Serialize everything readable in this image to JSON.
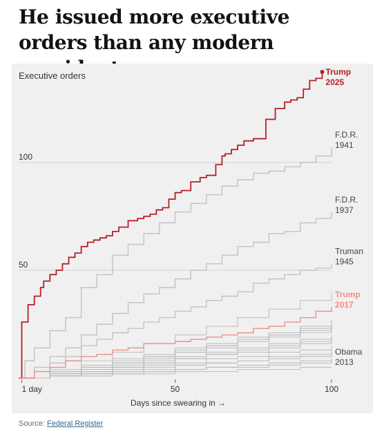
{
  "headline": "He issued more executive orders than any modern president …",
  "source": {
    "prefix": "Source:",
    "link": "Federal Register"
  },
  "chart_data": {
    "type": "line",
    "title": "Executive orders",
    "xlabel": "Days since swearing in →",
    "x_ticks": [
      {
        "value": 1,
        "label": "1 day"
      },
      {
        "value": 50,
        "label": "50"
      },
      {
        "value": 100,
        "label": "100"
      }
    ],
    "y_ticks": [
      {
        "value": 50,
        "label": "50"
      },
      {
        "value": 100,
        "label": "100"
      }
    ],
    "xlim": [
      0,
      100
    ],
    "ylim": [
      0,
      142
    ],
    "grid": "horizontal",
    "colors": {
      "trump2025": "#b52025",
      "trump2017": "#f08c8c",
      "highlight_gray": "#c2c2c2",
      "others": "#b8b8b8"
    },
    "series": [
      {
        "name": "Trump 2025",
        "labels": [
          "Trump",
          "2025"
        ],
        "style": "trump2025",
        "points": [
          [
            0,
            0
          ],
          [
            1,
            19
          ],
          [
            1,
            26
          ],
          [
            3,
            34
          ],
          [
            5,
            38
          ],
          [
            7,
            42
          ],
          [
            8,
            45
          ],
          [
            10,
            48
          ],
          [
            12,
            50
          ],
          [
            14,
            53
          ],
          [
            16,
            56
          ],
          [
            18,
            58
          ],
          [
            20,
            61
          ],
          [
            22,
            63
          ],
          [
            24,
            64
          ],
          [
            26,
            65
          ],
          [
            28,
            66
          ],
          [
            30,
            68
          ],
          [
            32,
            70
          ],
          [
            35,
            73
          ],
          [
            38,
            74
          ],
          [
            40,
            75
          ],
          [
            42,
            76
          ],
          [
            44,
            78
          ],
          [
            46,
            79
          ],
          [
            48,
            83
          ],
          [
            50,
            86
          ],
          [
            52,
            87
          ],
          [
            55,
            91
          ],
          [
            58,
            93
          ],
          [
            60,
            94
          ],
          [
            63,
            99
          ],
          [
            65,
            103
          ],
          [
            66,
            104
          ],
          [
            68,
            106
          ],
          [
            70,
            108
          ],
          [
            72,
            110
          ],
          [
            75,
            111
          ],
          [
            79,
            120
          ],
          [
            82,
            125
          ],
          [
            85,
            128
          ],
          [
            87,
            129
          ],
          [
            89,
            130
          ],
          [
            91,
            134
          ],
          [
            93,
            138
          ],
          [
            95,
            139
          ],
          [
            97,
            142
          ]
        ]
      },
      {
        "name": "F.D.R. 1941",
        "labels": [
          "F.D.R.",
          "1941"
        ],
        "style": "highlight",
        "points": [
          [
            0,
            0
          ],
          [
            2,
            8
          ],
          [
            5,
            14
          ],
          [
            10,
            22
          ],
          [
            15,
            28
          ],
          [
            20,
            42
          ],
          [
            25,
            48
          ],
          [
            30,
            57
          ],
          [
            35,
            62
          ],
          [
            40,
            67
          ],
          [
            45,
            72
          ],
          [
            50,
            77
          ],
          [
            55,
            81
          ],
          [
            60,
            85
          ],
          [
            65,
            89
          ],
          [
            70,
            92
          ],
          [
            75,
            95
          ],
          [
            80,
            96
          ],
          [
            85,
            98
          ],
          [
            90,
            100
          ],
          [
            95,
            103
          ],
          [
            100,
            107
          ]
        ]
      },
      {
        "name": "F.D.R. 1937",
        "labels": [
          "F.D.R.",
          "1937"
        ],
        "style": "highlight",
        "points": [
          [
            0,
            0
          ],
          [
            5,
            5
          ],
          [
            10,
            10
          ],
          [
            15,
            14
          ],
          [
            20,
            20
          ],
          [
            25,
            25
          ],
          [
            30,
            30
          ],
          [
            35,
            35
          ],
          [
            40,
            39
          ],
          [
            45,
            42
          ],
          [
            50,
            46
          ],
          [
            55,
            50
          ],
          [
            60,
            53
          ],
          [
            65,
            57
          ],
          [
            70,
            61
          ],
          [
            75,
            63
          ],
          [
            80,
            67
          ],
          [
            85,
            68
          ],
          [
            90,
            72
          ],
          [
            95,
            74
          ],
          [
            100,
            77
          ]
        ]
      },
      {
        "name": "Truman 1945",
        "labels": [
          "Truman",
          "1945"
        ],
        "style": "highlight",
        "points": [
          [
            0,
            0
          ],
          [
            5,
            3
          ],
          [
            10,
            7
          ],
          [
            15,
            10
          ],
          [
            20,
            15
          ],
          [
            25,
            18
          ],
          [
            30,
            21
          ],
          [
            35,
            23
          ],
          [
            40,
            26
          ],
          [
            45,
            28
          ],
          [
            50,
            31
          ],
          [
            55,
            33
          ],
          [
            60,
            36
          ],
          [
            65,
            38
          ],
          [
            70,
            40
          ],
          [
            75,
            44
          ],
          [
            80,
            46
          ],
          [
            85,
            48
          ],
          [
            90,
            50
          ],
          [
            95,
            51
          ],
          [
            100,
            53
          ]
        ]
      },
      {
        "name": "Trump 2017",
        "labels": [
          "Trump",
          "2017"
        ],
        "style": "trump2017",
        "points": [
          [
            0,
            0
          ],
          [
            5,
            3
          ],
          [
            10,
            5
          ],
          [
            15,
            8
          ],
          [
            20,
            10
          ],
          [
            25,
            11
          ],
          [
            30,
            13
          ],
          [
            35,
            14
          ],
          [
            40,
            16
          ],
          [
            45,
            16
          ],
          [
            50,
            17
          ],
          [
            55,
            18
          ],
          [
            60,
            19
          ],
          [
            65,
            20
          ],
          [
            70,
            21
          ],
          [
            75,
            23
          ],
          [
            80,
            24
          ],
          [
            85,
            26
          ],
          [
            90,
            28
          ],
          [
            95,
            31
          ],
          [
            100,
            33
          ]
        ]
      },
      {
        "name": "Obama 2013",
        "labels": [
          "Obama",
          "2013"
        ],
        "style": "other",
        "points": [
          [
            0,
            0
          ],
          [
            10,
            1
          ],
          [
            20,
            2
          ],
          [
            30,
            3
          ],
          [
            40,
            3
          ],
          [
            50,
            4
          ],
          [
            60,
            5
          ],
          [
            70,
            5
          ],
          [
            80,
            6
          ],
          [
            90,
            7
          ],
          [
            100,
            8
          ]
        ]
      },
      {
        "style": "other",
        "points": [
          [
            0,
            0
          ],
          [
            10,
            2
          ],
          [
            20,
            4
          ],
          [
            30,
            7
          ],
          [
            40,
            9
          ],
          [
            50,
            12
          ],
          [
            60,
            14
          ],
          [
            70,
            17
          ],
          [
            80,
            19
          ],
          [
            90,
            21
          ],
          [
            100,
            23
          ]
        ]
      },
      {
        "style": "other",
        "points": [
          [
            0,
            0
          ],
          [
            10,
            3
          ],
          [
            20,
            5
          ],
          [
            30,
            8
          ],
          [
            40,
            10
          ],
          [
            50,
            13
          ],
          [
            60,
            15
          ],
          [
            70,
            18
          ],
          [
            80,
            20
          ],
          [
            90,
            23
          ],
          [
            100,
            25
          ]
        ]
      },
      {
        "style": "other",
        "points": [
          [
            0,
            0
          ],
          [
            10,
            2
          ],
          [
            20,
            4
          ],
          [
            30,
            6
          ],
          [
            40,
            8
          ],
          [
            50,
            10
          ],
          [
            60,
            12
          ],
          [
            70,
            14
          ],
          [
            80,
            16
          ],
          [
            90,
            18
          ],
          [
            100,
            20
          ]
        ]
      },
      {
        "style": "other",
        "points": [
          [
            0,
            0
          ],
          [
            10,
            2
          ],
          [
            20,
            3
          ],
          [
            30,
            5
          ],
          [
            40,
            7
          ],
          [
            50,
            9
          ],
          [
            60,
            11
          ],
          [
            70,
            12
          ],
          [
            80,
            14
          ],
          [
            90,
            16
          ],
          [
            100,
            18
          ]
        ]
      },
      {
        "style": "other",
        "points": [
          [
            0,
            0
          ],
          [
            10,
            1
          ],
          [
            20,
            3
          ],
          [
            30,
            4
          ],
          [
            40,
            6
          ],
          [
            50,
            7
          ],
          [
            60,
            9
          ],
          [
            70,
            10
          ],
          [
            80,
            12
          ],
          [
            90,
            13
          ],
          [
            100,
            15
          ]
        ]
      },
      {
        "style": "other",
        "points": [
          [
            0,
            0
          ],
          [
            10,
            1
          ],
          [
            20,
            2
          ],
          [
            30,
            3
          ],
          [
            40,
            4
          ],
          [
            50,
            6
          ],
          [
            60,
            7
          ],
          [
            70,
            8
          ],
          [
            80,
            9
          ],
          [
            90,
            10
          ],
          [
            100,
            12
          ]
        ]
      },
      {
        "style": "other",
        "points": [
          [
            0,
            0
          ],
          [
            10,
            1
          ],
          [
            20,
            2
          ],
          [
            30,
            2
          ],
          [
            40,
            3
          ],
          [
            50,
            4
          ],
          [
            60,
            5
          ],
          [
            70,
            6
          ],
          [
            80,
            7
          ],
          [
            90,
            8
          ],
          [
            100,
            9
          ]
        ]
      },
      {
        "style": "other",
        "points": [
          [
            0,
            0
          ],
          [
            10,
            3
          ],
          [
            20,
            6
          ],
          [
            30,
            9
          ],
          [
            40,
            11
          ],
          [
            50,
            14
          ],
          [
            60,
            16
          ],
          [
            70,
            19
          ],
          [
            80,
            21
          ],
          [
            90,
            24
          ],
          [
            100,
            27
          ]
        ]
      },
      {
        "style": "other",
        "points": [
          [
            0,
            0
          ],
          [
            10,
            3
          ],
          [
            20,
            5
          ],
          [
            30,
            7
          ],
          [
            40,
            10
          ],
          [
            50,
            12
          ],
          [
            60,
            15
          ],
          [
            70,
            17
          ],
          [
            80,
            20
          ],
          [
            90,
            22
          ],
          [
            100,
            24
          ]
        ]
      },
      {
        "style": "other",
        "points": [
          [
            0,
            0
          ],
          [
            10,
            2
          ],
          [
            20,
            4
          ],
          [
            30,
            5
          ],
          [
            40,
            7
          ],
          [
            50,
            9
          ],
          [
            60,
            11
          ],
          [
            70,
            13
          ],
          [
            80,
            15
          ],
          [
            90,
            17
          ],
          [
            100,
            19
          ]
        ]
      },
      {
        "style": "other",
        "points": [
          [
            0,
            0
          ],
          [
            10,
            1
          ],
          [
            20,
            2
          ],
          [
            30,
            4
          ],
          [
            40,
            5
          ],
          [
            50,
            6
          ],
          [
            60,
            7
          ],
          [
            70,
            8
          ],
          [
            80,
            10
          ],
          [
            90,
            11
          ],
          [
            100,
            13
          ]
        ]
      },
      {
        "style": "other",
        "points": [
          [
            0,
            0
          ],
          [
            10,
            4
          ],
          [
            20,
            8
          ],
          [
            30,
            12
          ],
          [
            40,
            16
          ],
          [
            50,
            20
          ],
          [
            60,
            24
          ],
          [
            70,
            28
          ],
          [
            80,
            32
          ],
          [
            90,
            36
          ],
          [
            100,
            40
          ]
        ]
      },
      {
        "style": "other",
        "points": [
          [
            0,
            0
          ],
          [
            10,
            1
          ],
          [
            20,
            1
          ],
          [
            30,
            2
          ],
          [
            40,
            2
          ],
          [
            50,
            3
          ],
          [
            60,
            3
          ],
          [
            70,
            4
          ],
          [
            80,
            4
          ],
          [
            90,
            5
          ],
          [
            100,
            5
          ]
        ]
      }
    ]
  }
}
